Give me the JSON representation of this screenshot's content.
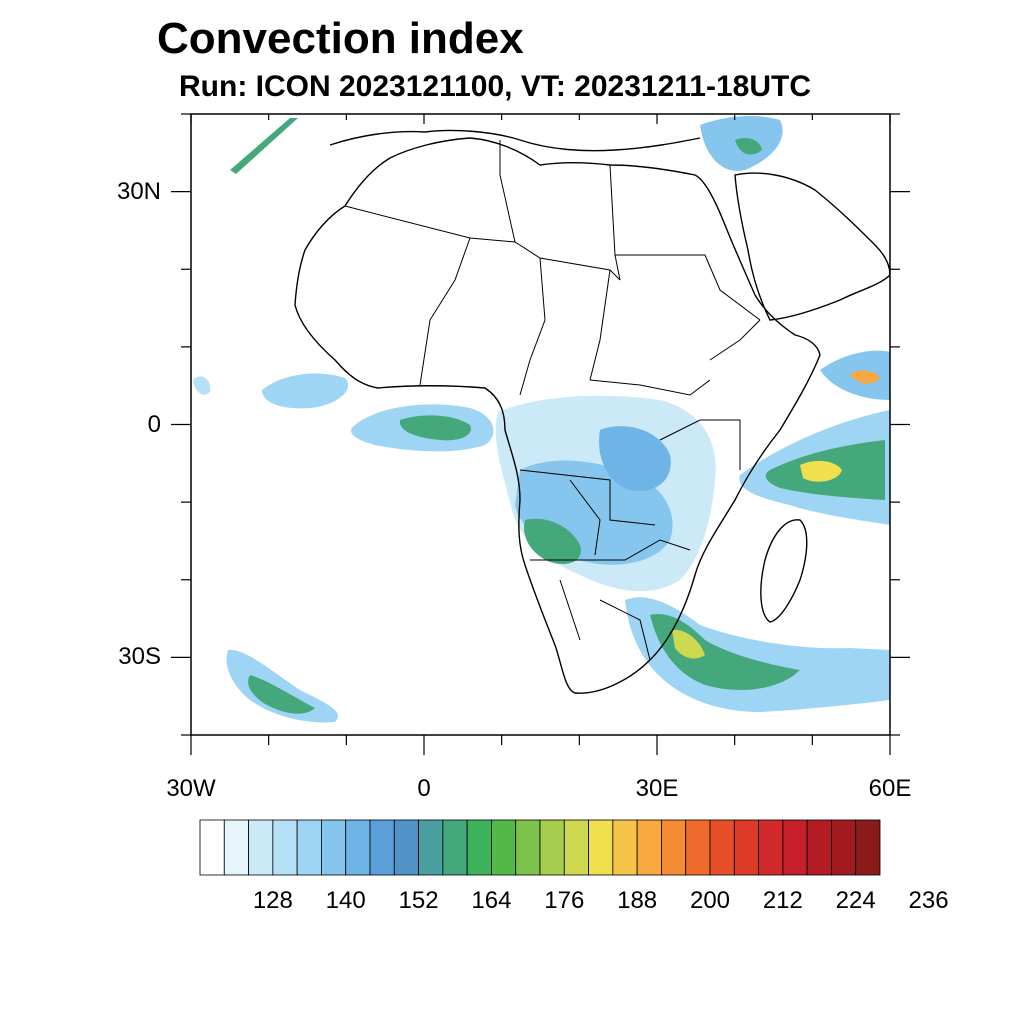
{
  "header": {
    "title": "Convection index",
    "subtitle": "Run: ICON 2023121100,  VT: 20231211-18UTC"
  },
  "axes": {
    "lat_ticks": [
      {
        "label": "30N",
        "value": 30
      },
      {
        "label": "0",
        "value": 0
      },
      {
        "label": "30S",
        "value": -30
      }
    ],
    "lon_ticks": [
      {
        "label": "30W",
        "value": -30
      },
      {
        "label": "0",
        "value": 0
      },
      {
        "label": "30E",
        "value": 30
      },
      {
        "label": "60E",
        "value": 60
      }
    ],
    "lon_range": [
      -30,
      60
    ],
    "lat_range": [
      -40,
      40
    ]
  },
  "colorbar": {
    "colors": [
      "#ffffff",
      "#e6f4fc",
      "#cce9f8",
      "#b6e0f6",
      "#9fd5f4",
      "#86c6ee",
      "#6fb4e6",
      "#5a9fd9",
      "#4f93c8",
      "#4aa0a0",
      "#44a87c",
      "#3fb25c",
      "#52b948",
      "#7dc24b",
      "#a7cd4e",
      "#cfd94f",
      "#f0e04d",
      "#f7c44a",
      "#f7a93f",
      "#f58c34",
      "#ef6a2b",
      "#e64f27",
      "#dd3a28",
      "#d22a2a",
      "#c41f2a",
      "#b41c24",
      "#a01a20",
      "#8b1a1a"
    ],
    "labels": [
      "128",
      "140",
      "152",
      "164",
      "176",
      "188",
      "200",
      "212",
      "224",
      "236"
    ]
  }
}
